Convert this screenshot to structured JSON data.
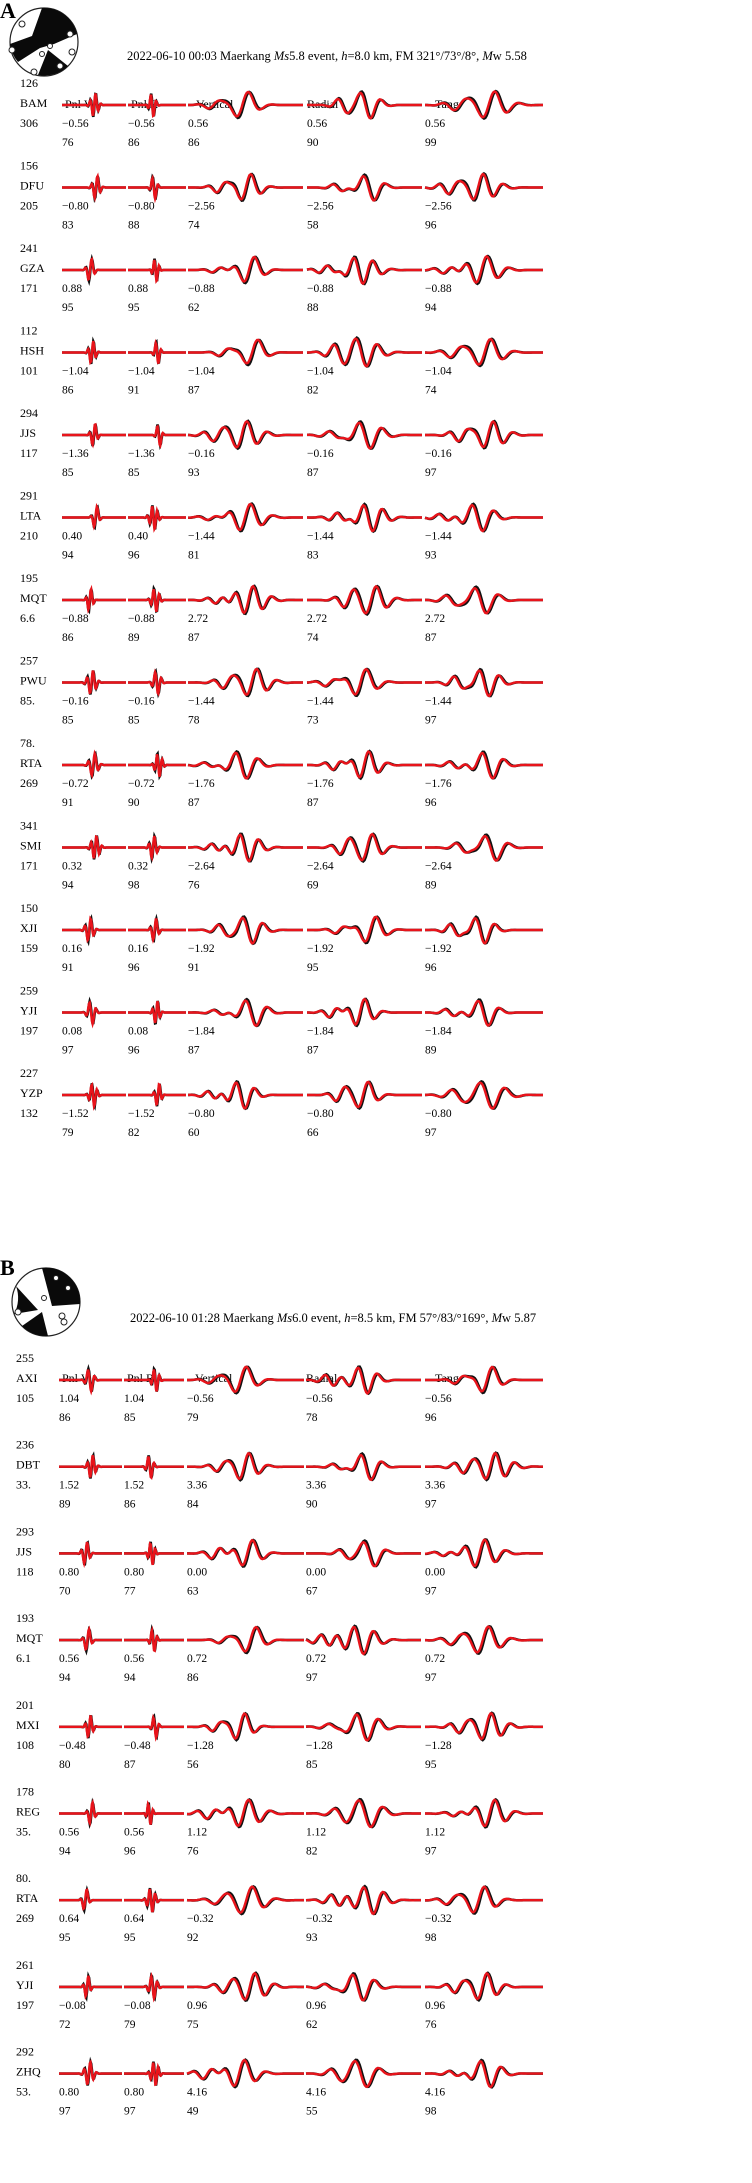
{
  "panels": [
    {
      "label": "A",
      "header": {
        "date": "2022-06-10 00:03 Maerkang ",
        "ms": "Ms",
        "event": "5.8 event, ",
        "h": "h",
        "rest": "=8.0 km, FM 321°/73°/8°,  ",
        "mw": "M",
        "mwrest": "w 5.58"
      },
      "columns": [
        "Pnl V",
        "Pnl R",
        "Vertical",
        "Radial",
        "Tang"
      ],
      "stations": [
        {
          "code": "BAM",
          "az": "126",
          "dist": "306",
          "shifts": [
            "−0.56",
            "−0.56",
            "0.56",
            "0.56",
            "0.56"
          ],
          "cc": [
            "76",
            "86",
            "86",
            "90",
            "99"
          ]
        },
        {
          "code": "DFU",
          "az": "156",
          "dist": "205",
          "shifts": [
            "−0.80",
            "−0.80",
            "−2.56",
            "−2.56",
            "−2.56"
          ],
          "cc": [
            "83",
            "88",
            "74",
            "58",
            "96"
          ]
        },
        {
          "code": "GZA",
          "az": "241",
          "dist": "171",
          "shifts": [
            "0.88",
            "0.88",
            "−0.88",
            "−0.88",
            "−0.88"
          ],
          "cc": [
            "95",
            "95",
            "62",
            "88",
            "94"
          ]
        },
        {
          "code": "HSH",
          "az": "112",
          "dist": "101",
          "shifts": [
            "−1.04",
            "−1.04",
            "−1.04",
            "−1.04",
            "−1.04"
          ],
          "cc": [
            "86",
            "91",
            "87",
            "82",
            "74"
          ]
        },
        {
          "code": "JJS",
          "az": "294",
          "dist": "117",
          "shifts": [
            "−1.36",
            "−1.36",
            "−0.16",
            "−0.16",
            "−0.16"
          ],
          "cc": [
            "85",
            "85",
            "93",
            "87",
            "97"
          ]
        },
        {
          "code": "LTA",
          "az": "291",
          "dist": "210",
          "shifts": [
            "0.40",
            "0.40",
            "−1.44",
            "−1.44",
            "−1.44"
          ],
          "cc": [
            "94",
            "96",
            "81",
            "83",
            "93"
          ]
        },
        {
          "code": "MQT",
          "az": "195",
          "dist": "6.6",
          "shifts": [
            "−0.88",
            "−0.88",
            "2.72",
            "2.72",
            "2.72"
          ],
          "cc": [
            "86",
            "89",
            "87",
            "74",
            "87"
          ]
        },
        {
          "code": "PWU",
          "az": "257",
          "dist": "85.",
          "shifts": [
            "−0.16",
            "−0.16",
            "−1.44",
            "−1.44",
            "−1.44"
          ],
          "cc": [
            "85",
            "85",
            "78",
            "73",
            "97"
          ]
        },
        {
          "code": "RTA",
          "az": "78.",
          "dist": "269",
          "shifts": [
            "−0.72",
            "−0.72",
            "−1.76",
            "−1.76",
            "−1.76"
          ],
          "cc": [
            "91",
            "90",
            "87",
            "87",
            "96"
          ]
        },
        {
          "code": "SMI",
          "az": "341",
          "dist": "171",
          "shifts": [
            "0.32",
            "0.32",
            "−2.64",
            "−2.64",
            "−2.64"
          ],
          "cc": [
            "94",
            "98",
            "76",
            "69",
            "89"
          ]
        },
        {
          "code": "XJI",
          "az": "150",
          "dist": "159",
          "shifts": [
            "0.16",
            "0.16",
            "−1.92",
            "−1.92",
            "−1.92"
          ],
          "cc": [
            "91",
            "96",
            "91",
            "95",
            "96"
          ]
        },
        {
          "code": "YJI",
          "az": "259",
          "dist": "197",
          "shifts": [
            "0.08",
            "0.08",
            "−1.84",
            "−1.84",
            "−1.84"
          ],
          "cc": [
            "97",
            "96",
            "87",
            "87",
            "89"
          ]
        },
        {
          "code": "YZP",
          "az": "227",
          "dist": "132",
          "shifts": [
            "−1.52",
            "−1.52",
            "−0.80",
            "−0.80",
            "−0.80"
          ],
          "cc": [
            "79",
            "82",
            "60",
            "66",
            "97"
          ]
        }
      ]
    },
    {
      "label": "B",
      "header": {
        "date": "2022-06-10 01:28 Maerkang ",
        "ms": "Ms",
        "event": "6.0 event, ",
        "h": "h",
        "rest": "=8.5 km, FM 57°/83/°169°,  ",
        "mw": "M",
        "mwrest": "w 5.87"
      },
      "columns": [
        "Pnl V",
        "Pnl R",
        "Vertical",
        "Radial",
        "Tang"
      ],
      "stations": [
        {
          "code": "AXI",
          "az": "255",
          "dist": "105",
          "shifts": [
            "1.04",
            "1.04",
            "−0.56",
            "−0.56",
            "−0.56"
          ],
          "cc": [
            "86",
            "85",
            "79",
            "78",
            "96"
          ]
        },
        {
          "code": "DBT",
          "az": "236",
          "dist": "33.",
          "shifts": [
            "1.52",
            "1.52",
            "3.36",
            "3.36",
            "3.36"
          ],
          "cc": [
            "89",
            "86",
            "84",
            "90",
            "97"
          ]
        },
        {
          "code": "JJS",
          "az": "293",
          "dist": "118",
          "shifts": [
            "0.80",
            "0.80",
            "0.00",
            "0.00",
            "0.00"
          ],
          "cc": [
            "70",
            "77",
            "63",
            "67",
            "97"
          ]
        },
        {
          "code": "MQT",
          "az": "193",
          "dist": "6.1",
          "shifts": [
            "0.56",
            "0.56",
            "0.72",
            "0.72",
            "0.72"
          ],
          "cc": [
            "94",
            "94",
            "86",
            "97",
            "97"
          ]
        },
        {
          "code": "MXI",
          "az": "201",
          "dist": "108",
          "shifts": [
            "−0.48",
            "−0.48",
            "−1.28",
            "−1.28",
            "−1.28"
          ],
          "cc": [
            "80",
            "87",
            "56",
            "85",
            "95"
          ]
        },
        {
          "code": "REG",
          "az": "178",
          "dist": "35.",
          "shifts": [
            "0.56",
            "0.56",
            "1.12",
            "1.12",
            "1.12"
          ],
          "cc": [
            "94",
            "96",
            "76",
            "82",
            "97"
          ]
        },
        {
          "code": "RTA",
          "az": "80.",
          "dist": "269",
          "shifts": [
            "0.64",
            "0.64",
            "−0.32",
            "−0.32",
            "−0.32"
          ],
          "cc": [
            "95",
            "95",
            "92",
            "93",
            "98"
          ]
        },
        {
          "code": "YJI",
          "az": "261",
          "dist": "197",
          "shifts": [
            "−0.08",
            "−0.08",
            "0.96",
            "0.96",
            "0.96"
          ],
          "cc": [
            "72",
            "79",
            "75",
            "62",
            "76"
          ]
        },
        {
          "code": "ZHQ",
          "az": "292",
          "dist": "53.",
          "shifts": [
            "0.80",
            "0.80",
            "4.16",
            "4.16",
            "4.16"
          ],
          "cc": [
            "97",
            "97",
            "49",
            "55",
            "98"
          ]
        }
      ]
    }
  ],
  "colors": {
    "observed": "#111111",
    "synthetic": "#e8141b",
    "beachball": "#0a0a0a"
  },
  "icons": [
    "beachball-icon"
  ]
}
